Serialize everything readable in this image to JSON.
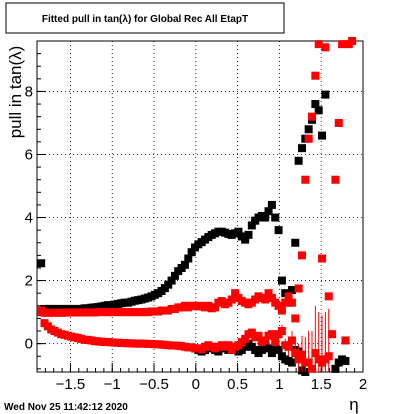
{
  "chart_data": {
    "type": "scatter",
    "title": "Fitted pull in tan(λ) for Global Rec All EtapT",
    "xlabel": "η",
    "ylabel": "pull in tan(λ)",
    "xlim": [
      -1.9,
      2.0
    ],
    "ylim": [
      -0.9,
      9.6
    ],
    "grid": true,
    "x_ticks": [
      -1.5,
      -1,
      -0.5,
      0,
      0.5,
      1,
      1.5,
      2
    ],
    "x_tick_labels": [
      "−1.5",
      "−1",
      "−0.5",
      "0",
      "0.5",
      "1",
      "1.5",
      "2"
    ],
    "y_ticks": [
      0,
      2,
      4,
      6,
      8
    ],
    "y_tick_labels": [
      "0",
      "2",
      "4",
      "6",
      "8"
    ],
    "timestamp": "Wed Nov 25 11:42:12 2020",
    "series": [
      {
        "color": "#000000",
        "x": [
          -1.85,
          -1.81,
          -1.77,
          -1.73,
          -1.69,
          -1.65,
          -1.61,
          -1.57,
          -1.53,
          -1.49,
          -1.45,
          -1.41,
          -1.37,
          -1.33,
          -1.29,
          -1.25,
          -1.21,
          -1.17,
          -1.13,
          -1.09,
          -1.05,
          -1.01,
          -0.97,
          -0.93,
          -0.89,
          -0.85,
          -0.81,
          -0.77,
          -0.73,
          -0.69,
          -0.65,
          -0.61,
          -0.57,
          -0.53,
          -0.49,
          -0.45,
          -0.41,
          -0.37,
          -0.33,
          -0.29,
          -0.25,
          -0.21,
          -0.17,
          -0.13,
          -0.09,
          -0.05,
          -0.01,
          0.03,
          0.07,
          0.11,
          0.15,
          0.19,
          0.23,
          0.27,
          0.31,
          0.35,
          0.39,
          0.43,
          0.47,
          0.51,
          0.55,
          0.59,
          0.63,
          0.67,
          0.71,
          0.75,
          0.79,
          0.83,
          0.87,
          0.91,
          0.95,
          0.99,
          1.03,
          1.07,
          1.11,
          1.15,
          1.19,
          1.23,
          1.27,
          1.31,
          1.35,
          1.39,
          1.43,
          1.47,
          1.51,
          1.55,
          1.59,
          1.63,
          1.67,
          1.71,
          1.75,
          1.79
        ],
        "y": [
          2.55,
          1.1,
          1.1,
          1.1,
          1.1,
          1.1,
          1.1,
          1.1,
          1.1,
          1.1,
          1.1,
          1.1,
          1.1,
          1.12,
          1.12,
          1.14,
          1.15,
          1.16,
          1.18,
          1.2,
          1.22,
          1.22,
          1.24,
          1.26,
          1.28,
          1.3,
          1.3,
          1.33,
          1.36,
          1.38,
          1.4,
          1.43,
          1.46,
          1.5,
          1.55,
          1.6,
          1.67,
          1.76,
          1.87,
          2.0,
          2.15,
          2.3,
          2.4,
          2.5,
          2.7,
          2.9,
          3.05,
          3.15,
          3.22,
          3.3,
          3.38,
          3.45,
          3.5,
          3.55,
          3.55,
          3.52,
          3.48,
          3.45,
          3.5,
          3.55,
          3.4,
          3.3,
          3.45,
          3.75,
          3.9,
          4.0,
          4.05,
          4.0,
          4.2,
          4.4,
          4.0,
          3.6,
          2.0,
          1.6,
          1.3,
          1.7,
          3.2,
          5.8,
          6.2,
          6.5,
          6.8,
          7.1,
          7.6,
          7.4,
          6.6,
          7.9,
          -1.0,
          -0.95,
          -0.8,
          -0.6,
          -0.5,
          -0.55
        ],
        "y_override": null
      },
      {
        "color": "#000000",
        "x": [
          -0.05,
          -0.01,
          0.03,
          0.07,
          0.11,
          0.15,
          0.19,
          0.23,
          0.27,
          0.31,
          0.35,
          0.39,
          0.43,
          0.47,
          0.51,
          0.55,
          0.59,
          0.63,
          0.67,
          0.71,
          0.75,
          0.79,
          0.83,
          0.87,
          0.91,
          0.95,
          0.99,
          1.03,
          1.07,
          1.11,
          1.15,
          1.19,
          1.23,
          1.27,
          1.31
        ],
        "y": [
          -0.12,
          -0.15,
          -0.2,
          -0.25,
          -0.2,
          -0.15,
          -0.1,
          -0.2,
          -0.25,
          -0.15,
          -0.1,
          -0.2,
          -0.15,
          -0.2,
          -0.25,
          -0.2,
          -0.1,
          0.0,
          -0.1,
          -0.2,
          -0.3,
          -0.2,
          0.1,
          -0.15,
          -0.3,
          -0.1,
          -0.2,
          -0.4,
          -0.5,
          -0.55,
          -0.6,
          -0.2,
          -0.25,
          -0.85,
          -0.9
        ]
      },
      {
        "color": "#ff0000",
        "x": [
          -1.85,
          -1.81,
          -1.77,
          -1.73,
          -1.69,
          -1.65,
          -1.61,
          -1.57,
          -1.53,
          -1.49,
          -1.45,
          -1.41,
          -1.37,
          -1.33,
          -1.29,
          -1.25,
          -1.21,
          -1.17,
          -1.13,
          -1.09,
          -1.05,
          -1.01,
          -0.97,
          -0.93,
          -0.89,
          -0.85,
          -0.81,
          -0.77,
          -0.73,
          -0.69,
          -0.65,
          -0.61,
          -0.57,
          -0.53,
          -0.49,
          -0.45,
          -0.41,
          -0.37,
          -0.33,
          -0.29,
          -0.25,
          -0.21,
          -0.17,
          -0.13,
          -0.09,
          -0.05,
          -0.01,
          0.03,
          0.07,
          0.11,
          0.15,
          0.19,
          0.23,
          0.27,
          0.31,
          0.35,
          0.39,
          0.43,
          0.47,
          0.51,
          0.55,
          0.59,
          0.63,
          0.67,
          0.71,
          0.75,
          0.79,
          0.83,
          0.87,
          0.91,
          0.95,
          0.99,
          1.03,
          1.07,
          1.11,
          1.15,
          1.19,
          1.23,
          1.27,
          1.31,
          1.35,
          1.39,
          1.43,
          1.47,
          1.51,
          1.55,
          1.59,
          1.63,
          1.67,
          1.71,
          1.75,
          1.79,
          1.83,
          1.87
        ],
        "y": [
          1.05,
          0.98,
          0.98,
          0.98,
          0.98,
          0.98,
          0.98,
          0.98,
          0.99,
          0.99,
          0.99,
          0.99,
          0.99,
          0.99,
          0.99,
          0.99,
          0.99,
          1.0,
          1.0,
          1.0,
          1.0,
          1.0,
          1.0,
          1.0,
          1.0,
          1.0,
          1.0,
          1.0,
          1.0,
          1.0,
          1.0,
          1.0,
          1.0,
          1.02,
          1.02,
          1.02,
          1.05,
          1.05,
          1.05,
          1.1,
          1.1,
          1.15,
          1.15,
          1.2,
          1.15,
          1.2,
          1.2,
          1.18,
          1.2,
          1.15,
          1.2,
          1.12,
          1.15,
          1.3,
          1.35,
          1.25,
          1.3,
          1.4,
          1.6,
          1.45,
          1.35,
          1.3,
          1.25,
          1.3,
          1.4,
          1.5,
          1.45,
          1.4,
          1.6,
          1.45,
          1.3,
          1.2,
          1.05,
          1.3,
          1.5,
          1.3,
          0.8,
          1.75,
          2.8,
          5.2,
          6.5,
          7.2,
          8.5,
          9.5,
          2.7,
          9.4,
          1.5,
          0.3,
          5.2,
          7.0,
          9.5,
          0.1,
          9.5,
          9.6
        ]
      },
      {
        "color": "#ff0000",
        "x": [
          -1.85,
          -1.81,
          -1.77,
          -1.73,
          -1.69,
          -1.65,
          -1.61,
          -1.57,
          -1.53,
          -1.49,
          -1.45,
          -1.41,
          -1.37,
          -1.33,
          -1.29,
          -1.25,
          -1.21,
          -1.17,
          -1.13,
          -1.09,
          -1.05,
          -1.01,
          -0.97,
          -0.93,
          -0.89,
          -0.85,
          -0.81,
          -0.77,
          -0.73,
          -0.69,
          -0.65,
          -0.61,
          -0.57,
          -0.53,
          -0.49,
          -0.45,
          -0.41,
          -0.37,
          -0.33,
          -0.29,
          -0.25,
          -0.21,
          -0.17,
          -0.13,
          -0.09,
          -0.05,
          -0.01,
          0.03,
          0.07,
          0.11,
          0.15,
          0.19,
          0.23,
          0.27,
          0.31,
          0.35,
          0.39,
          0.43,
          0.47,
          0.51,
          0.55,
          0.59,
          0.63,
          0.67,
          0.71,
          0.75,
          0.79,
          0.83,
          0.87,
          0.91,
          0.95,
          0.99,
          1.03,
          1.07,
          1.11,
          1.15,
          1.19,
          1.23,
          1.27,
          1.31,
          1.35,
          1.39,
          1.43,
          1.47,
          1.51,
          1.55,
          1.59
        ],
        "y": [
          1.0,
          0.65,
          0.55,
          0.45,
          0.4,
          0.35,
          0.3,
          0.28,
          0.25,
          0.22,
          0.2,
          0.18,
          0.15,
          0.12,
          0.12,
          0.1,
          0.08,
          0.07,
          0.06,
          0.05,
          0.05,
          0.04,
          0.03,
          0.03,
          0.02,
          0.02,
          0.01,
          0.01,
          0.0,
          0.0,
          0.0,
          0.0,
          -0.01,
          -0.01,
          -0.02,
          -0.02,
          -0.03,
          -0.04,
          -0.05,
          -0.06,
          -0.06,
          -0.07,
          -0.08,
          -0.1,
          -0.12,
          -0.12,
          -0.15,
          -0.15,
          -0.18,
          -0.1,
          -0.05,
          -0.1,
          -0.15,
          -0.1,
          -0.05,
          -0.1,
          -0.05,
          -0.2,
          -0.1,
          -0.05,
          0.05,
          0.15,
          0.3,
          0.35,
          0.2,
          0.25,
          0.05,
          0.1,
          0.25,
          0.3,
          0.05,
          0.3,
          0.4,
          -0.05,
          -0.1,
          0.1,
          -0.3,
          -0.5,
          -0.35,
          -0.6,
          -0.6,
          -0.8,
          -0.3,
          -0.5,
          -0.6,
          -0.5,
          -0.4
        ],
        "errors": [
          0.1,
          0.05,
          0.05,
          0.05,
          0.05,
          0.05,
          0.05,
          0.05,
          0.05,
          0.05,
          0.05,
          0.05,
          0.05,
          0.05,
          0.05,
          0.05,
          0.05,
          0.05,
          0.05,
          0.05,
          0.05,
          0.05,
          0.05,
          0.05,
          0.05,
          0.05,
          0.05,
          0.05,
          0.05,
          0.05,
          0.05,
          0.05,
          0.05,
          0.05,
          0.05,
          0.05,
          0.05,
          0.05,
          0.05,
          0.05,
          0.05,
          0.05,
          0.05,
          0.05,
          0.05,
          0.05,
          0.05,
          0.05,
          0.05,
          0.05,
          0.05,
          0.05,
          0.05,
          0.05,
          0.05,
          0.05,
          0.05,
          0.05,
          0.05,
          0.05,
          0.05,
          0.05,
          0.1,
          0.1,
          0.1,
          0.1,
          0.1,
          0.1,
          0.1,
          0.1,
          0.15,
          0.15,
          0.2,
          0.2,
          0.3,
          0.3,
          0.4,
          0.5,
          0.6,
          0.8,
          1.0,
          1.2,
          1.5,
          1.5,
          1.5,
          1.5,
          1.5
        ]
      }
    ]
  }
}
